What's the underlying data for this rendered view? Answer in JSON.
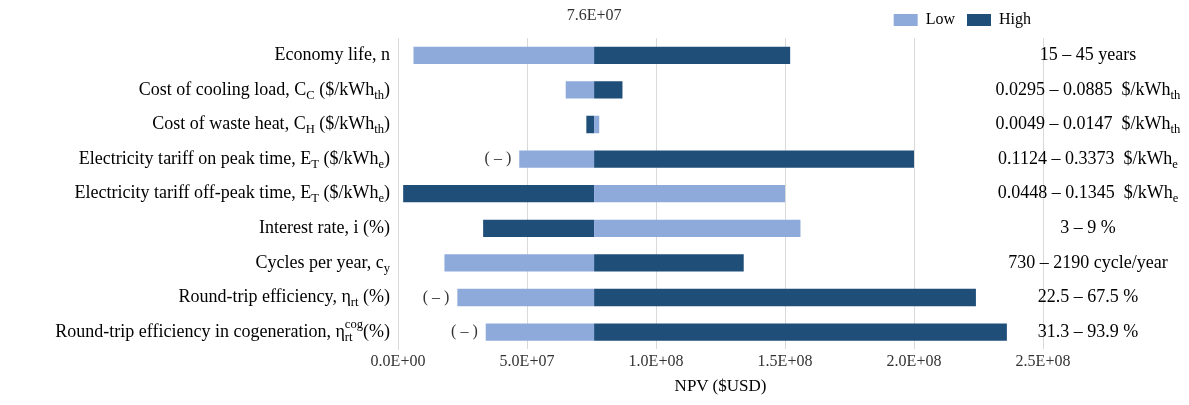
{
  "chart_data": {
    "type": "bar",
    "orientation": "horizontal",
    "xlabel": "NPV ($USD)",
    "categories": [
      "Economy life, n",
      "Cost of cooling load, C$_{C}$ ($/kWh$_{th}$)",
      "Cost of waste heat, C$_{H}$ ($/kWh$_{th}$)",
      "Electricity tariff on peak time, E$_{T}$ ($/kWh$_{e}$)",
      "Electricity tariff off-peak time, E$_{T}$ ($/kWh$_{e}$)",
      "Interest rate, i (%)",
      "Cycles per year, c$_{y}$",
      "Round-trip efficiency, η$_{rt}$ (%)",
      "Round-trip efficiency in cogeneration, η$_{rt}$$^{cog}$(%)"
    ],
    "series": [
      {
        "name": "Low",
        "color": "#8eaadb",
        "base": [
          76000000,
          76000000,
          76000000,
          76000000,
          76000000,
          76000000,
          76000000,
          76000000,
          76000000
        ],
        "values": [
          -70000000,
          -11000000,
          2000000,
          -29000000,
          74000000,
          80000000,
          -58000000,
          -53000000,
          -42000000
        ],
        "value_labels": [
          null,
          null,
          null,
          "( – )",
          null,
          null,
          null,
          "( – )",
          "( – )"
        ]
      },
      {
        "name": "High",
        "color": "#1f4e79",
        "base": [
          76000000,
          76000000,
          76000000,
          76000000,
          76000000,
          76000000,
          76000000,
          76000000,
          76000000
        ],
        "values": [
          76000000,
          11000000,
          -3000000,
          124000000,
          -74000000,
          -43000000,
          58000000,
          148000000,
          160000000
        ]
      }
    ],
    "xlim": [
      0,
      250000000
    ],
    "xticks": [
      {
        "value": 0,
        "label": "0.0E+00"
      },
      {
        "value": 50000000,
        "label": "5.0E+07"
      },
      {
        "value": 100000000,
        "label": "1.0E+08"
      },
      {
        "value": 150000000,
        "label": "1.5E+08"
      },
      {
        "value": 200000000,
        "label": "2.0E+08"
      },
      {
        "value": 250000000,
        "label": "2.5E+08"
      }
    ],
    "grid": "x",
    "legend": "top right",
    "annotations": [
      "15 – 45 years",
      "0.0295 – 0.0885  $/kWh$_{th}$",
      "0.0049 – 0.0147  $/kWh$_{th}$",
      "0.1124 – 0.3373  $/kWh$_{e}$",
      "0.0448 – 0.1345  $/kWh$_{e}$",
      "3 – 9 %",
      "730 – 2190 cycle/year",
      "22.5 – 67.5 %",
      "31.3 – 93.9 %",
      "7.6E+07"
    ]
  }
}
